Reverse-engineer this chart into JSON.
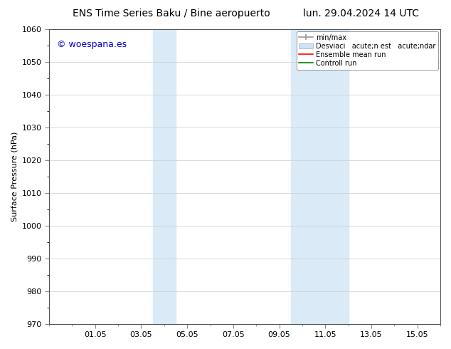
{
  "title_left": "ENS Time Series Baku / Bine aeropuerto",
  "title_right": "lun. 29.04.2024 14 UTC",
  "ylabel": "Surface Pressure (hPa)",
  "ylim": [
    970,
    1060
  ],
  "yticks": [
    970,
    980,
    990,
    1000,
    1010,
    1020,
    1030,
    1040,
    1050,
    1060
  ],
  "xtick_labels": [
    "01.05",
    "03.05",
    "05.05",
    "07.05",
    "09.05",
    "11.05",
    "13.05",
    "15.05"
  ],
  "xtick_positions": [
    2,
    4,
    6,
    8,
    10,
    12,
    14,
    16
  ],
  "xlim": [
    0,
    17
  ],
  "shaded_regions": [
    {
      "x_start": 4.5,
      "x_end": 5.0,
      "color": "#daeaf7"
    },
    {
      "x_start": 5.0,
      "x_end": 5.5,
      "color": "#daeaf7"
    },
    {
      "x_start": 10.5,
      "x_end": 11.5,
      "color": "#daeaf7"
    },
    {
      "x_start": 11.5,
      "x_end": 13.0,
      "color": "#daeaf7"
    }
  ],
  "watermark_text": "© woespana.es",
  "watermark_color": "#0000cc",
  "legend_label_minmax": "min/max",
  "legend_label_desviac": "Desviaci   acute;n est   acute;ndar",
  "legend_label_ensemble": "Ensemble mean run",
  "legend_label_control": "Controll run",
  "legend_color_minmax": "#999999",
  "legend_color_desviac": "#cce4f5",
  "legend_color_ensemble": "#ff0000",
  "legend_color_control": "#008000",
  "bg_color": "#ffffff",
  "plot_bg_color": "#ffffff",
  "grid_color": "#cccccc",
  "font_size": 8,
  "title_font_size": 10
}
